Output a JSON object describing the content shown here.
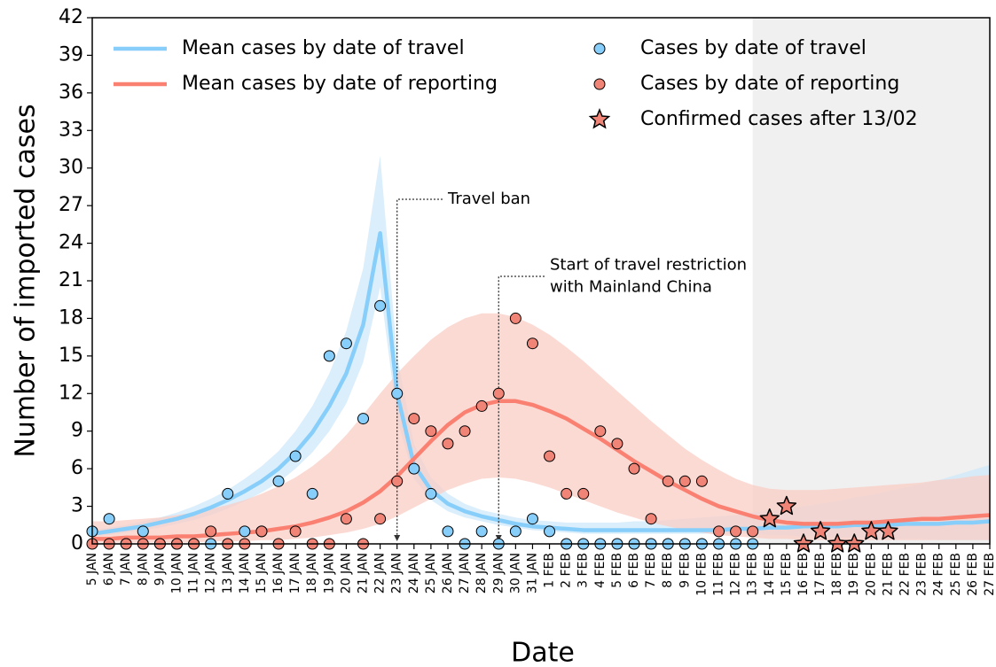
{
  "chart_data": {
    "type": "line",
    "x_label": "Date",
    "y_label": "Number of imported cases",
    "categories": [
      "5 JAN",
      "6 JAN",
      "7 JAN",
      "8 JAN",
      "9 JAN",
      "10 JAN",
      "11 JAN",
      "12 JAN",
      "13 JAN",
      "14 JAN",
      "15 JAN",
      "16 JAN",
      "17 JAN",
      "18 JAN",
      "19 JAN",
      "20 JAN",
      "21 JAN",
      "22 JAN",
      "23 JAN",
      "24 JAN",
      "25 JAN",
      "26 JAN",
      "27 JAN",
      "28 JAN",
      "29 JAN",
      "30 JAN",
      "31 JAN",
      "1 FEB",
      "2 FEB",
      "3 FEB",
      "4 FEB",
      "5 FEB",
      "6 FEB",
      "7 FEB",
      "8 FEB",
      "9 FEB",
      "10 FEB",
      "11 FEB",
      "12 FEB",
      "13 FEB",
      "14 FEB",
      "15 FEB",
      "16 FEB",
      "17 FEB",
      "18 FEB",
      "19 FEB",
      "20 FEB",
      "21 FEB",
      "22 FEB",
      "23 FEB",
      "24 FEB",
      "25 FEB",
      "26 FEB",
      "27 FEB"
    ],
    "ylim": [
      0,
      42
    ],
    "yticks": [
      0,
      3,
      6,
      9,
      12,
      15,
      18,
      21,
      24,
      27,
      30,
      33,
      36,
      39,
      42
    ],
    "legend": "upper center",
    "shade_from": "13 FEB",
    "shade_color": "#f0f0f0",
    "series": [
      {
        "name": "Mean cases by date of travel",
        "kind": "line",
        "color": "#87cefa",
        "band_color": "#cfe8fa",
        "values": [
          0.8,
          1.0,
          1.2,
          1.4,
          1.7,
          2.0,
          2.4,
          2.9,
          3.5,
          4.2,
          5.0,
          6.0,
          7.3,
          8.9,
          11.0,
          13.6,
          17.5,
          24.8,
          12.0,
          6.3,
          4.3,
          3.2,
          2.6,
          2.2,
          1.9,
          1.6,
          1.4,
          1.3,
          1.2,
          1.1,
          1.1,
          1.1,
          1.1,
          1.1,
          1.1,
          1.1,
          1.1,
          1.1,
          1.2,
          1.2,
          1.3,
          1.3,
          1.4,
          1.4,
          1.4,
          1.5,
          1.5,
          1.5,
          1.6,
          1.6,
          1.6,
          1.7,
          1.7,
          1.8
        ],
        "lower": [
          0.6,
          0.7,
          0.9,
          1.1,
          1.3,
          1.6,
          1.9,
          2.3,
          2.8,
          3.4,
          4.1,
          4.9,
          6.0,
          7.3,
          9.0,
          11.2,
          14.5,
          20.5,
          10.0,
          5.2,
          3.5,
          2.6,
          2.1,
          1.8,
          1.5,
          1.3,
          1.1,
          1.0,
          0.9,
          0.8,
          0.8,
          0.8,
          0.8,
          0.8,
          0.8,
          0.8,
          0.8,
          0.8,
          0.8,
          0.8,
          0.7,
          0.7,
          0.6,
          0.6,
          0.5,
          0.5,
          0.5,
          0.4,
          0.4,
          0.4,
          0.3,
          0.3,
          0.3,
          0.3
        ],
        "upper": [
          1.1,
          1.3,
          1.5,
          1.8,
          2.1,
          2.5,
          3.0,
          3.6,
          4.3,
          5.2,
          6.2,
          7.4,
          9.0,
          11.0,
          13.6,
          17.0,
          22.0,
          31.0,
          15.0,
          8.0,
          5.3,
          4.0,
          3.2,
          2.7,
          2.4,
          2.1,
          1.9,
          1.8,
          1.7,
          1.7,
          1.7,
          1.7,
          1.8,
          1.8,
          1.9,
          2.0,
          2.1,
          2.2,
          2.3,
          2.5,
          2.6,
          2.8,
          3.0,
          3.2,
          3.4,
          3.7,
          3.9,
          4.2,
          4.5,
          4.8,
          5.1,
          5.5,
          5.9,
          6.3
        ]
      },
      {
        "name": "Mean cases by date of reporting",
        "kind": "line",
        "color": "#fa8072",
        "band_color": "#f9cdc6",
        "values": [
          0.4,
          0.4,
          0.5,
          0.5,
          0.5,
          0.6,
          0.6,
          0.7,
          0.8,
          0.9,
          1.0,
          1.2,
          1.4,
          1.7,
          2.1,
          2.6,
          3.3,
          4.2,
          5.4,
          6.8,
          8.2,
          9.5,
          10.5,
          11.1,
          11.4,
          11.4,
          11.1,
          10.6,
          10.0,
          9.2,
          8.4,
          7.5,
          6.6,
          5.8,
          5.0,
          4.3,
          3.6,
          3.0,
          2.6,
          2.2,
          1.9,
          1.7,
          1.6,
          1.6,
          1.6,
          1.7,
          1.7,
          1.8,
          1.9,
          2.0,
          2.0,
          2.1,
          2.2,
          2.3
        ],
        "lower": [
          0.1,
          0.1,
          0.1,
          0.1,
          0.1,
          0.1,
          0.1,
          0.2,
          0.2,
          0.2,
          0.3,
          0.3,
          0.4,
          0.5,
          0.7,
          0.9,
          1.2,
          1.6,
          2.2,
          2.9,
          3.6,
          4.3,
          4.8,
          5.2,
          5.3,
          5.2,
          4.9,
          4.5,
          4.0,
          3.5,
          3.0,
          2.5,
          2.1,
          1.7,
          1.4,
          1.1,
          0.9,
          0.7,
          0.6,
          0.5,
          0.4,
          0.4,
          0.3,
          0.3,
          0.3,
          0.3,
          0.3,
          0.3,
          0.3,
          0.3,
          0.3,
          0.3,
          0.3,
          0.3
        ],
        "upper": [
          1.8,
          1.8,
          1.9,
          2.0,
          2.1,
          2.3,
          2.5,
          2.8,
          3.1,
          3.5,
          4.0,
          4.6,
          5.3,
          6.2,
          7.3,
          8.7,
          10.3,
          12.0,
          13.6,
          15.0,
          16.3,
          17.3,
          18.0,
          18.4,
          18.4,
          18.1,
          17.5,
          16.7,
          15.7,
          14.6,
          13.4,
          12.2,
          11.0,
          9.8,
          8.7,
          7.6,
          6.7,
          5.9,
          5.2,
          4.7,
          4.4,
          4.3,
          4.3,
          4.3,
          4.4,
          4.5,
          4.6,
          4.7,
          4.8,
          4.9,
          5.1,
          5.2,
          5.4,
          5.5
        ]
      },
      {
        "name": "Cases by date of travel",
        "kind": "scatter",
        "marker": "circle",
        "color": "#87cefa",
        "values": [
          1,
          2,
          0,
          1,
          0,
          0,
          0,
          0,
          4,
          1,
          1,
          5,
          7,
          4,
          15,
          16,
          10,
          19,
          12,
          6,
          4,
          1,
          0,
          1,
          0,
          1,
          2,
          1,
          0,
          0,
          0,
          0,
          0,
          0,
          0,
          0,
          0,
          0,
          0,
          0,
          null,
          null,
          null,
          null,
          null,
          null,
          null,
          null,
          null,
          null,
          null,
          null,
          null,
          null
        ]
      },
      {
        "name": "Cases by date of reporting",
        "kind": "scatter",
        "marker": "circle",
        "color": "#f08476",
        "values": [
          0,
          0,
          0,
          0,
          0,
          0,
          0,
          1,
          0,
          0,
          1,
          0,
          1,
          0,
          0,
          2,
          0,
          2,
          5,
          10,
          9,
          8,
          9,
          11,
          12,
          18,
          16,
          7,
          4,
          4,
          9,
          8,
          6,
          2,
          5,
          5,
          5,
          1,
          1,
          1,
          null,
          null,
          null,
          null,
          null,
          null,
          null,
          null,
          null,
          null,
          null,
          null,
          null,
          null
        ]
      },
      {
        "name": "Confirmed cases after 13/02",
        "kind": "scatter",
        "marker": "star",
        "color": "#f08476",
        "values": [
          null,
          null,
          null,
          null,
          null,
          null,
          null,
          null,
          null,
          null,
          null,
          null,
          null,
          null,
          null,
          null,
          null,
          null,
          null,
          null,
          null,
          null,
          null,
          null,
          null,
          null,
          null,
          null,
          null,
          null,
          null,
          null,
          null,
          null,
          null,
          null,
          null,
          null,
          null,
          null,
          2,
          3,
          0,
          1,
          0,
          0,
          1,
          1,
          null,
          null,
          null,
          null,
          null,
          null
        ]
      }
    ],
    "annotations": [
      {
        "lines": [
          "Travel ban"
        ],
        "at": "23 JAN"
      },
      {
        "lines": [
          "Start of travel restriction",
          "with Mainland China"
        ],
        "at": "29 JAN"
      }
    ]
  }
}
